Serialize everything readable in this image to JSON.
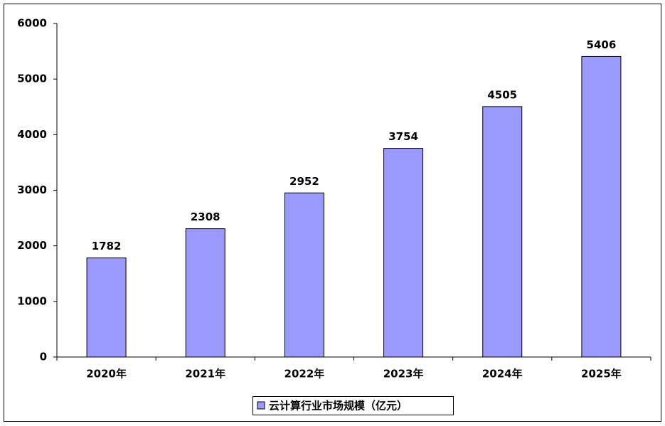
{
  "chart_data": {
    "type": "bar",
    "categories": [
      "2020年",
      "2021年",
      "2022年",
      "2023年",
      "2024年",
      "2025年"
    ],
    "series": [
      {
        "name": "云计算行业市场规模（亿元）",
        "color": "#9999ff",
        "values": [
          1782,
          2308,
          2952,
          3754,
          4505,
          5406
        ]
      }
    ],
    "ylim": [
      0,
      6000
    ],
    "yticks": [
      0,
      1000,
      2000,
      3000,
      4000,
      5000,
      6000
    ],
    "grid": false,
    "legend": "bottom",
    "data_labels": true
  }
}
